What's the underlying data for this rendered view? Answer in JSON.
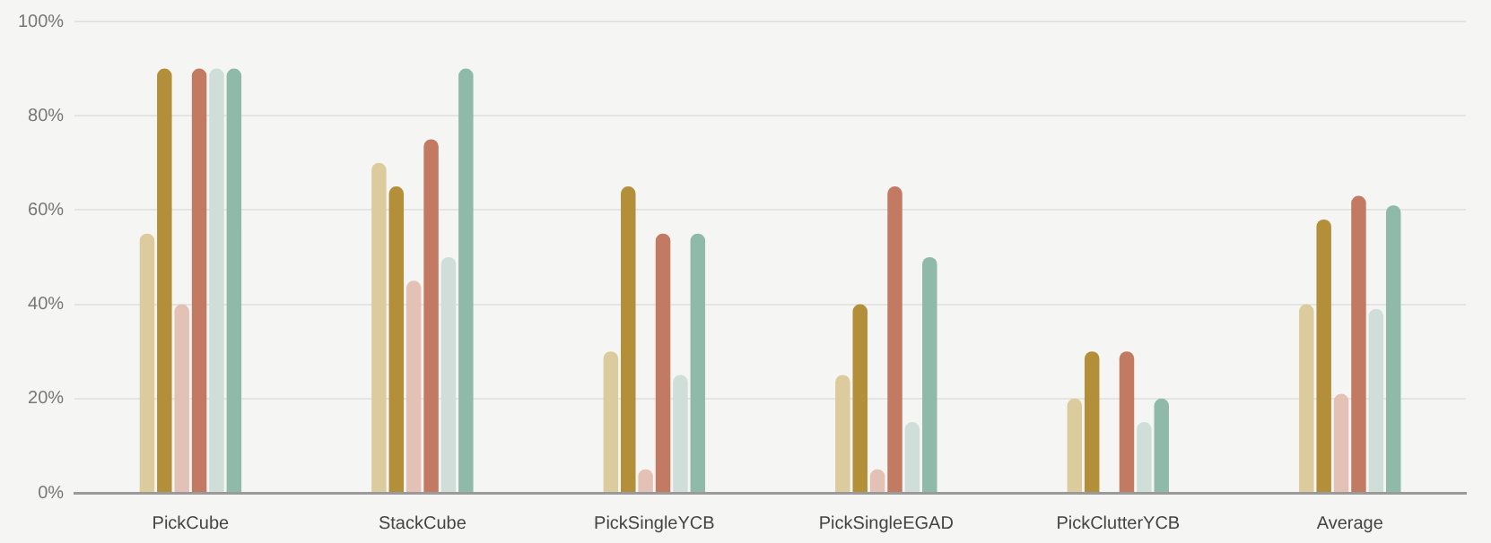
{
  "chart_data": {
    "type": "bar",
    "categories": [
      "PickCube",
      "StackCube",
      "PickSingleYCB",
      "PickSingleEGAD",
      "PickClutterYCB",
      "Average"
    ],
    "series": [
      {
        "color": "#dccb9c",
        "values": [
          55,
          70,
          30,
          25,
          20,
          40
        ]
      },
      {
        "color": "#b38f3a",
        "values": [
          90,
          65,
          65,
          40,
          30,
          58
        ]
      },
      {
        "color": "#e3c2b5",
        "values": [
          40,
          45,
          5,
          5,
          0,
          21
        ]
      },
      {
        "color": "#c27a63",
        "values": [
          90,
          75,
          55,
          65,
          30,
          63
        ]
      },
      {
        "color": "#cfded8",
        "values": [
          90,
          50,
          25,
          15,
          15,
          39
        ]
      },
      {
        "color": "#8fb9a8",
        "values": [
          90,
          90,
          55,
          50,
          20,
          61
        ]
      }
    ],
    "ylim": [
      0,
      100
    ],
    "yticks": [
      {
        "value": 0,
        "label": "0%"
      },
      {
        "value": 20,
        "label": "20%"
      },
      {
        "value": 40,
        "label": "40%"
      },
      {
        "value": 60,
        "label": "60%"
      },
      {
        "value": 80,
        "label": "80%"
      },
      {
        "value": 100,
        "label": "100%"
      }
    ],
    "grid": "y",
    "legend": false
  }
}
